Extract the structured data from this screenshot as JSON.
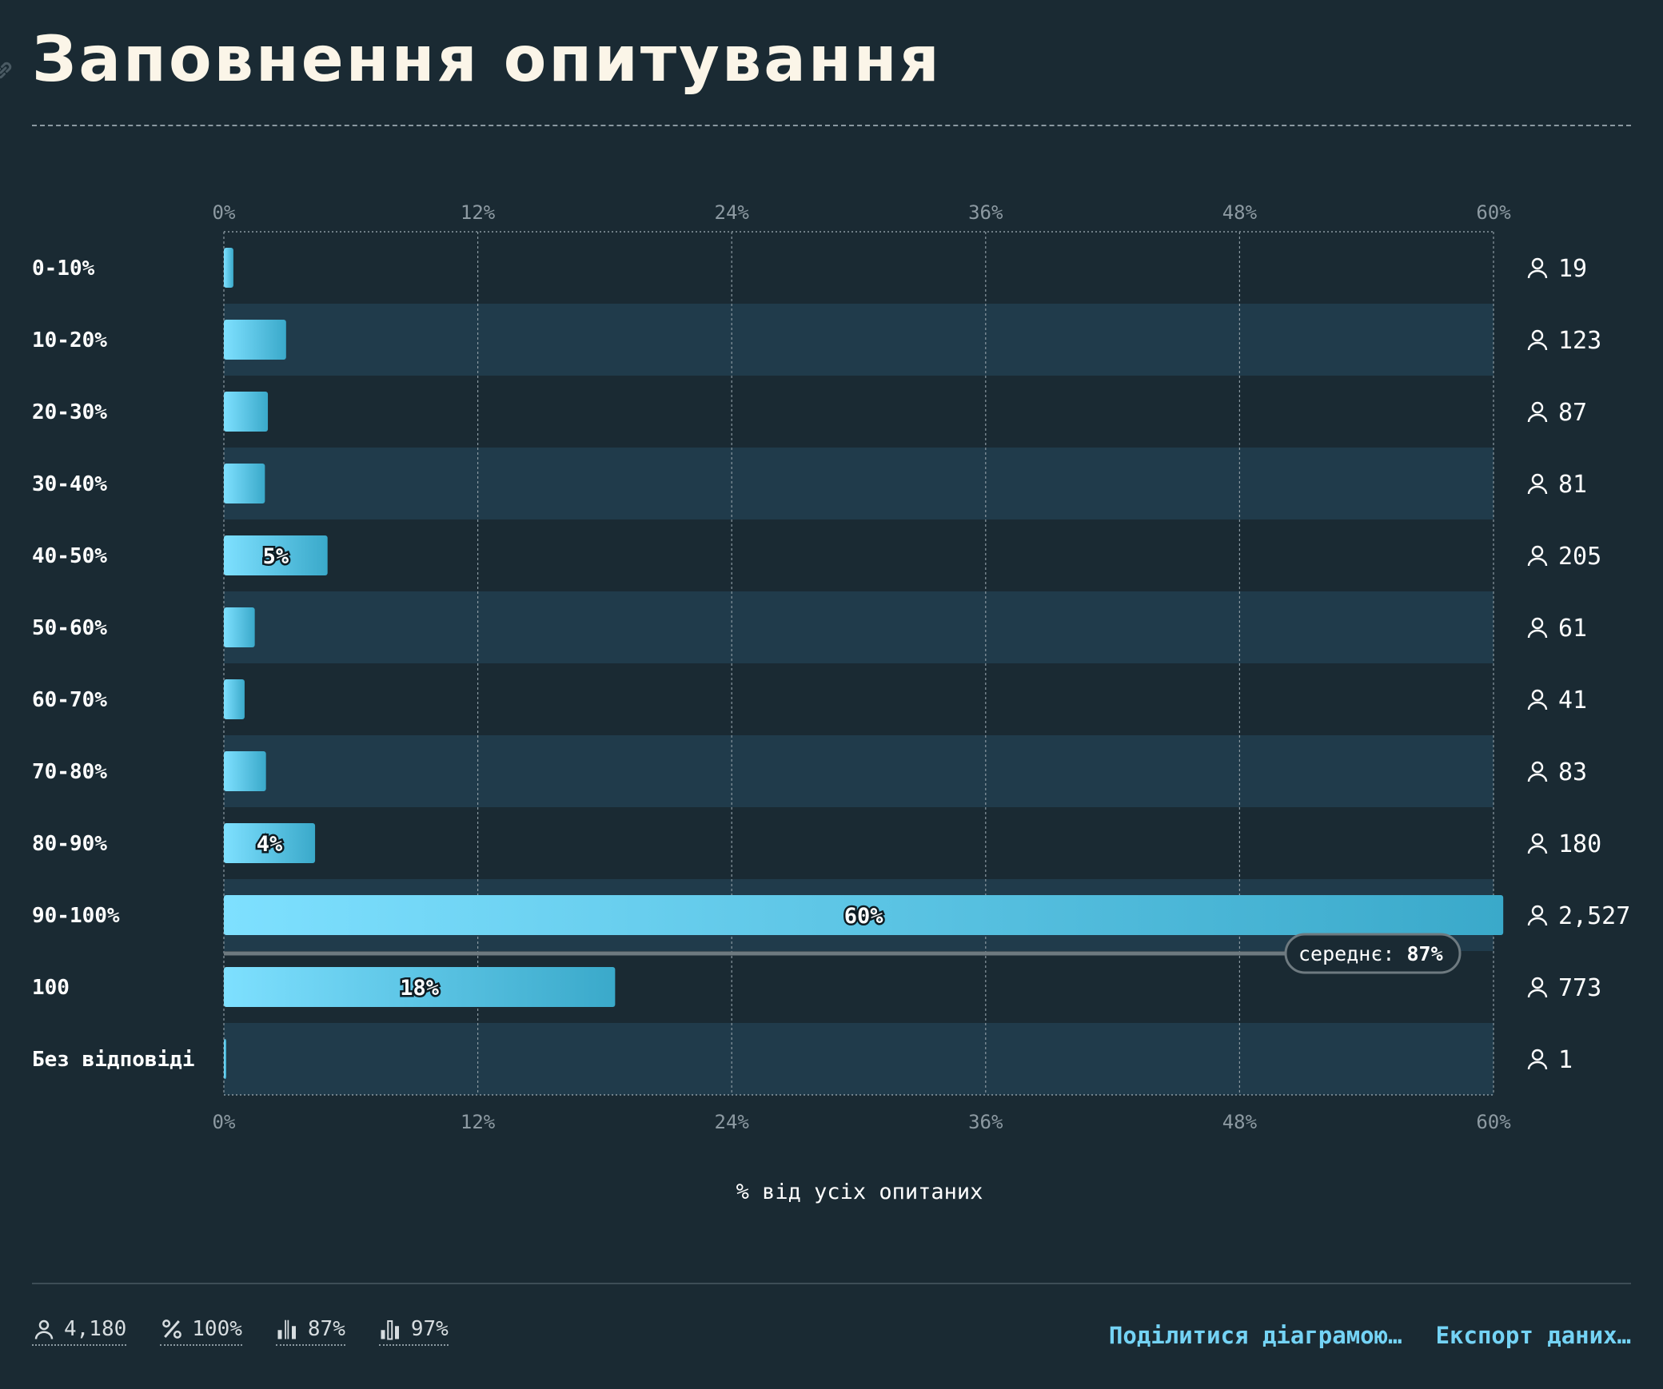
{
  "header": {
    "title": "Заповнення опитування"
  },
  "colors": {
    "background": "#1a2a33",
    "row_alt": "#203b4b",
    "bar_start": "#7ee0ff",
    "bar_end": "#3aa9ca",
    "accent": "#74d3f5"
  },
  "chart_data": {
    "type": "bar",
    "orientation": "horizontal",
    "xlabel": "% від усіх опитаних",
    "xlim": [
      0,
      60
    ],
    "ticks": [
      "0%",
      "12%",
      "24%",
      "36%",
      "48%",
      "60%"
    ],
    "tick_values": [
      0,
      12,
      24,
      36,
      48,
      60
    ],
    "grid": true,
    "categories": [
      "0-10%",
      "10-20%",
      "20-30%",
      "30-40%",
      "40-50%",
      "50-60%",
      "60-70%",
      "70-80%",
      "80-90%",
      "90-100%",
      "100",
      "Без відповіді"
    ],
    "values": [
      0.45,
      2.94,
      2.08,
      1.94,
      4.9,
      1.46,
      0.98,
      1.99,
      4.31,
      60.46,
      18.49,
      0.02
    ],
    "counts": [
      "19",
      "123",
      "87",
      "81",
      "205",
      "61",
      "41",
      "83",
      "180",
      "2,527",
      "773",
      "1"
    ],
    "value_labels": [
      "",
      "",
      "",
      "",
      "5%",
      "",
      "",
      "",
      "4%",
      "60%",
      "18%",
      ""
    ],
    "average": {
      "label": "середнє:",
      "value": "87%"
    }
  },
  "footer": {
    "stats": [
      {
        "icon": "person-icon",
        "value": "4,180"
      },
      {
        "icon": "percent-icon",
        "value": "100%"
      },
      {
        "icon": "median-chart-icon",
        "value": "87%"
      },
      {
        "icon": "histogram-icon",
        "value": "97%"
      }
    ],
    "share_label": "Поділитися діаграмою…",
    "export_label": "Експорт даних…"
  }
}
